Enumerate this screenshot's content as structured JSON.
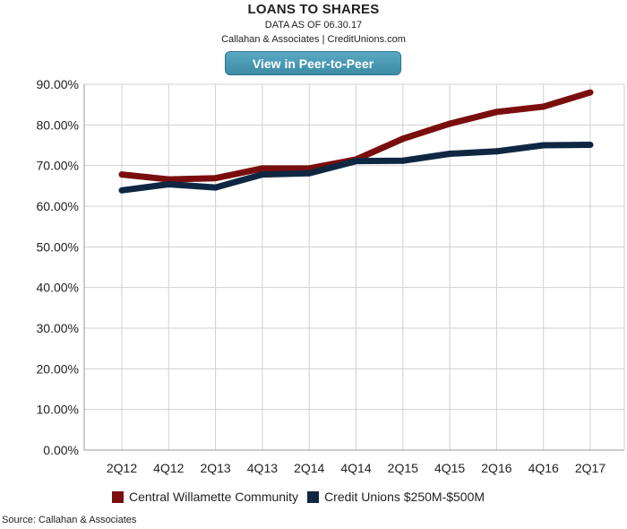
{
  "header": {
    "title": "LOANS TO SHARES",
    "as_of": "DATA AS OF 06.30.17",
    "credit": "Callahan & Associates | CreditUnions.com",
    "button_label": "View in Peer-to-Peer"
  },
  "footer": {
    "source": "Source: Callahan & Associates"
  },
  "colors": {
    "series_1": "#7a0e0e",
    "series_2": "#0f2742",
    "button": "#4a9ab5",
    "grid": "#d0d0d0"
  },
  "chart_data": {
    "type": "line",
    "title": "LOANS TO SHARES",
    "xlabel": "",
    "ylabel": "",
    "categories": [
      "2Q12",
      "4Q12",
      "2Q13",
      "4Q13",
      "2Q14",
      "4Q14",
      "2Q15",
      "4Q15",
      "2Q16",
      "4Q16",
      "2Q17"
    ],
    "y_ticks": [
      "0.00%",
      "10.00%",
      "20.00%",
      "30.00%",
      "40.00%",
      "50.00%",
      "60.00%",
      "70.00%",
      "80.00%",
      "90.00%"
    ],
    "ylim": [
      0,
      90
    ],
    "grid": true,
    "legend_position": "bottom",
    "series": [
      {
        "name": "Central Willamette Community",
        "values": [
          67.8,
          66.6,
          66.9,
          69.3,
          69.3,
          71.5,
          76.6,
          80.3,
          83.2,
          84.5,
          88.0
        ]
      },
      {
        "name": "Credit Unions $250M-$500M",
        "values": [
          63.9,
          65.4,
          64.6,
          67.8,
          68.1,
          71.1,
          71.2,
          72.9,
          73.5,
          75.0,
          75.1
        ]
      }
    ]
  }
}
